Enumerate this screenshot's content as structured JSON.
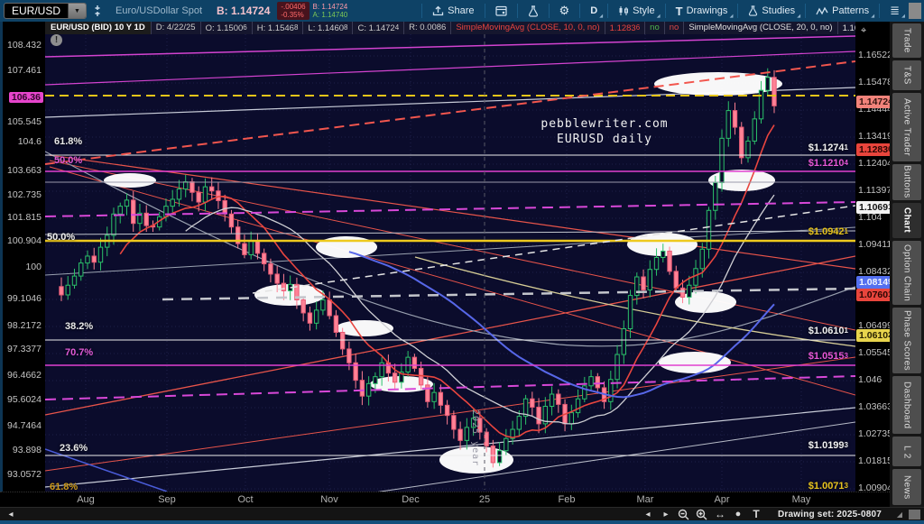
{
  "toolbar": {
    "symbol": "EUR/USD",
    "description": "Euro/USDollar Spot",
    "bid_main": "B: 1.14724",
    "change": "-.00406",
    "change_pct": "-0.35%",
    "bid_small": "B: 1.14724",
    "ask_small": "A: 1.14740",
    "share_label": "Share",
    "timeframe": "D",
    "style_label": "Style",
    "drawings_label": "Drawings",
    "studies_label": "Studies",
    "patterns_label": "Patterns"
  },
  "chart_header": {
    "title": "EUR/USD (BID) 10 Y 1D",
    "cells": [
      {
        "t": "D: 4/22/25"
      },
      {
        "t": "O: 1.1500",
        "s": "6"
      },
      {
        "t": "H: 1.1546",
        "s": "8"
      },
      {
        "t": "L: 1.1460",
        "s": "8"
      },
      {
        "t": "C: 1.1472",
        "s": "4"
      },
      {
        "t": "R: 0.0086"
      },
      {
        "t": "SimpleMovingAvg (CLOSE, 10, 0, no)",
        "color": "#e8443f"
      },
      {
        "t": "1.1283",
        "s": "6",
        "color": "#e8443f"
      },
      {
        "t": "no",
        "color": "#4db84d"
      },
      {
        "t": "no",
        "color": "#d84848"
      },
      {
        "t": "SimpleMovingAvg (CLOSE, 20, 0, no)",
        "color": "#e0e0e0"
      },
      {
        "t": "1.1069",
        "s": "1",
        "color": "#e0e0e0"
      },
      {
        "t": "..."
      }
    ]
  },
  "left_axis": {
    "values": [
      "108.432",
      "107.461",
      "106.36",
      "105.545",
      "104.6",
      "103.663",
      "102.735",
      "101.815",
      "100.904",
      "100",
      "99.1046",
      "98.2172",
      "97.3377",
      "96.4662",
      "95.6024",
      "94.7464",
      "93.898",
      "93.0572"
    ],
    "highlighted": "106.36"
  },
  "right_axis": {
    "ticks": [
      "1.16522",
      "1.15478",
      "1.14444",
      "1.13419",
      "1.12404",
      "1.11397",
      "1.104",
      "1.09411",
      "1.08432",
      "1.07461",
      "1.06499",
      "1.05545",
      "1.046",
      "1.03663",
      "1.02735",
      "1.01815",
      "1.00904"
    ],
    "badges": [
      {
        "value": "1.1472",
        "sub": "4",
        "bg": "#f2837b",
        "fg": "#331410"
      },
      {
        "value": "1.1283",
        "sub": "6",
        "bg": "#e8453c",
        "fg": "#2a0502"
      },
      {
        "value": "1.1069",
        "sub": "1",
        "bg": "#f2f2f2",
        "fg": "#111111"
      },
      {
        "value": "1.0814",
        "sub": "9",
        "bg": "#5470f0",
        "fg": "#f0f4ff"
      },
      {
        "value": "1.0760",
        "sub": "1",
        "bg": "#e8453c",
        "fg": "#2a0502"
      },
      {
        "value": "1.0610",
        "sub": "2",
        "bg": "#e8d44d",
        "fg": "#2a2302"
      }
    ]
  },
  "time_axis": [
    "Aug",
    "Sep",
    "Oct",
    "Nov",
    "Dec",
    "25",
    "Feb",
    "Mar",
    "Apr",
    "May"
  ],
  "sidebar": {
    "tabs": [
      "Trade",
      "T&S",
      "Active Trader",
      "Buttons",
      "Chart",
      "Option Chain",
      "Phase Scores",
      "Dashboard",
      "L 2",
      "News"
    ],
    "active": "Chart"
  },
  "status_bar": {
    "drawing_set": "Drawing set: 2025-0807"
  },
  "annotations": {
    "watermark_line1": "pebblewriter.com",
    "watermark_line2": "EURUSD daily",
    "year_marker": "2025 year",
    "alert": "!",
    "crosshair": "⌖",
    "fib_labels": [
      {
        "text": "61.8%",
        "color": "#e8e8e8"
      },
      {
        "text": "50.0%",
        "color": "#e05ad8"
      },
      {
        "text": "50.0%",
        "color": "#f0f0f0"
      },
      {
        "text": "38.2%",
        "color": "#e8e8e8"
      },
      {
        "text": "70.7%",
        "color": "#e05ad8"
      },
      {
        "text": "23.6%",
        "color": "#e8e8e8"
      },
      {
        "text": "61.8%",
        "color": "#cf9b1c"
      }
    ],
    "price_labels": [
      {
        "text": "$1.1274",
        "sub": "1",
        "color": "#f2f2f2"
      },
      {
        "text": "$1.1210",
        "sub": "4",
        "color": "#e858d8"
      },
      {
        "text": "$1.0942",
        "sub": "1",
        "color": "#e8c41f"
      },
      {
        "text": "$1.0610",
        "sub": "1",
        "color": "#f2f2f2"
      },
      {
        "text": "$1.0515",
        "sub": "3",
        "color": "#e858d8"
      },
      {
        "text": "$1.0199",
        "sub": "3",
        "color": "#f2f2f2"
      },
      {
        "text": "$1.0071",
        "sub": "3",
        "color": "#e8c41f"
      }
    ]
  },
  "chart_data": {
    "type": "candlestick",
    "symbol": "EUR/USD",
    "timeframe": "1D, visible window Aug 2024 - May 2025",
    "ylim": [
      1.00904,
      1.16522
    ],
    "grid": true,
    "note": "closes estimated from pixels; open = prior close; wicks approximated",
    "closes": [
      1.079,
      1.0825,
      1.0858,
      1.0905,
      1.093,
      1.0908,
      1.0962,
      1.1005,
      1.1082,
      1.111,
      1.1132,
      1.1048,
      1.1085,
      1.104,
      1.1035,
      1.1072,
      1.111,
      1.1135,
      1.1172,
      1.1198,
      1.116,
      1.1125,
      1.118,
      1.1165,
      1.113,
      1.1082,
      1.1035,
      1.0975,
      1.0935,
      1.0985,
      1.094,
      1.0902,
      1.0865,
      1.0832,
      1.0805,
      1.0828,
      1.0772,
      1.0725,
      1.0688,
      1.0735,
      1.0772,
      1.0715,
      1.0655,
      1.0595,
      1.0545,
      1.0482,
      1.0425,
      1.047,
      1.0495,
      1.0545,
      1.0508,
      1.0475,
      1.0512,
      1.0565,
      1.0525,
      1.0465,
      1.0405,
      1.0438,
      1.0392,
      1.0355,
      1.0305,
      1.0265,
      1.0312,
      1.0345,
      1.0295,
      1.0245,
      1.0185,
      1.0228,
      1.0272,
      1.0305,
      1.0352,
      1.0415,
      1.0385,
      1.0325,
      1.0388,
      1.0432,
      1.0395,
      1.0325,
      1.0365,
      1.0415,
      1.0462,
      1.0495,
      1.0455,
      1.0405,
      1.0485,
      1.0575,
      1.0668,
      1.0788,
      1.0855,
      1.0808,
      1.0882,
      1.0925,
      1.0948,
      1.0875,
      1.0815,
      1.0782,
      1.0825,
      1.0885,
      1.0955,
      1.1095,
      1.1195,
      1.1355,
      1.1455,
      1.1395,
      1.1285,
      1.1345,
      1.1425,
      1.1528,
      1.1575,
      1.1472
    ],
    "current_bar": {
      "date": "4/22/25",
      "open": 1.15006,
      "high": 1.15468,
      "low": 1.14608,
      "close": 1.14724,
      "range": 0.0086
    },
    "key_levels": [
      1.12741,
      1.12104,
      1.09421,
      1.06101,
      1.05153,
      1.01993,
      1.00713
    ],
    "fib_retracements": [
      "61.8%",
      "50.0%",
      "38.2%",
      "23.6%",
      "70.7%"
    ],
    "sma": [
      {
        "name": "SimpleMovingAvg (CLOSE, 10, 0, no)",
        "value": 1.12836,
        "color": "#e8443f"
      },
      {
        "name": "SimpleMovingAvg (CLOSE, 20, 0, no)",
        "value": 1.10691,
        "color": "#d8d8d8"
      }
    ]
  }
}
